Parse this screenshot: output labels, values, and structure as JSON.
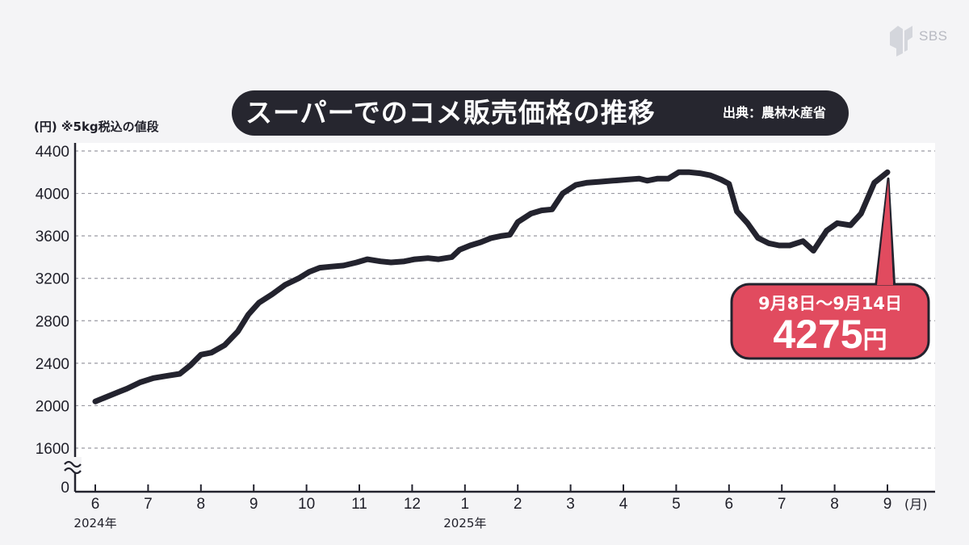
{
  "header": {
    "title": "スーパーでのコメ販売価格の推移",
    "source": "出典：農林水産省",
    "unit_label": "(円) ※5kg税込の値段",
    "brand": "SBS"
  },
  "callout": {
    "date_range": "9月8日〜9月14日",
    "value": "4275",
    "unit": "円",
    "color": "#e14b5f"
  },
  "chart_data": {
    "type": "line",
    "title": "スーパーでのコメ販売価格の推移",
    "xlabel": "(月)",
    "ylabel": "(円)",
    "ylim": [
      1600,
      4400
    ],
    "broken_axis": true,
    "grid": true,
    "line_color": "#23232e",
    "yticks": [
      {
        "label": "4400",
        "value": 4400
      },
      {
        "label": "4000",
        "value": 4000
      },
      {
        "label": "3600",
        "value": 3600
      },
      {
        "label": "3200",
        "value": 3200
      },
      {
        "label": "2800",
        "value": 2800
      },
      {
        "label": "2400",
        "value": 2400
      },
      {
        "label": "2000",
        "value": 2000
      },
      {
        "label": "1600",
        "value": 1600
      }
    ],
    "y_zero_label": "0",
    "xticks": [
      {
        "label": "6",
        "x": 0
      },
      {
        "label": "7",
        "x": 1
      },
      {
        "label": "8",
        "x": 2
      },
      {
        "label": "9",
        "x": 3
      },
      {
        "label": "10",
        "x": 4
      },
      {
        "label": "11",
        "x": 5
      },
      {
        "label": "12",
        "x": 6
      },
      {
        "label": "1",
        "x": 7
      },
      {
        "label": "2",
        "x": 8
      },
      {
        "label": "3",
        "x": 9
      },
      {
        "label": "4",
        "x": 10
      },
      {
        "label": "5",
        "x": 11
      },
      {
        "label": "6",
        "x": 12
      },
      {
        "label": "7",
        "x": 13
      },
      {
        "label": "8",
        "x": 14
      },
      {
        "label": "9",
        "x": 15
      }
    ],
    "year_labels": [
      {
        "label": "2024年",
        "x": 0
      },
      {
        "label": "2025年",
        "x": 7
      }
    ],
    "series": [
      {
        "values": [
          [
            0.0,
            2040
          ],
          [
            0.15,
            2070
          ],
          [
            0.3,
            2100
          ],
          [
            0.45,
            2130
          ],
          [
            0.6,
            2160
          ],
          [
            0.85,
            2220
          ],
          [
            1.1,
            2260
          ],
          [
            1.35,
            2280
          ],
          [
            1.6,
            2300
          ],
          [
            1.8,
            2380
          ],
          [
            2.0,
            2480
          ],
          [
            2.2,
            2500
          ],
          [
            2.45,
            2570
          ],
          [
            2.7,
            2700
          ],
          [
            2.9,
            2860
          ],
          [
            3.1,
            2970
          ],
          [
            3.35,
            3050
          ],
          [
            3.6,
            3140
          ],
          [
            3.85,
            3200
          ],
          [
            4.05,
            3260
          ],
          [
            4.25,
            3300
          ],
          [
            4.45,
            3310
          ],
          [
            4.7,
            3320
          ],
          [
            4.95,
            3350
          ],
          [
            5.15,
            3380
          ],
          [
            5.4,
            3360
          ],
          [
            5.6,
            3350
          ],
          [
            5.85,
            3360
          ],
          [
            6.05,
            3380
          ],
          [
            6.3,
            3390
          ],
          [
            6.5,
            3380
          ],
          [
            6.75,
            3400
          ],
          [
            6.9,
            3470
          ],
          [
            7.1,
            3510
          ],
          [
            7.3,
            3540
          ],
          [
            7.5,
            3580
          ],
          [
            7.7,
            3600
          ],
          [
            7.85,
            3610
          ],
          [
            8.0,
            3730
          ],
          [
            8.25,
            3810
          ],
          [
            8.45,
            3840
          ],
          [
            8.65,
            3850
          ],
          [
            8.85,
            4000
          ],
          [
            9.1,
            4080
          ],
          [
            9.3,
            4100
          ],
          [
            9.55,
            4110
          ],
          [
            9.8,
            4120
          ],
          [
            10.05,
            4130
          ],
          [
            10.3,
            4140
          ],
          [
            10.45,
            4120
          ],
          [
            10.65,
            4140
          ],
          [
            10.85,
            4140
          ],
          [
            11.05,
            4200
          ],
          [
            11.25,
            4200
          ],
          [
            11.45,
            4190
          ],
          [
            11.65,
            4170
          ],
          [
            11.85,
            4130
          ],
          [
            12.0,
            4090
          ],
          [
            12.15,
            3830
          ],
          [
            12.35,
            3720
          ],
          [
            12.55,
            3580
          ],
          [
            12.75,
            3530
          ],
          [
            12.95,
            3510
          ],
          [
            13.15,
            3510
          ],
          [
            13.4,
            3550
          ],
          [
            13.6,
            3460
          ],
          [
            13.85,
            3650
          ],
          [
            14.05,
            3720
          ],
          [
            14.3,
            3700
          ],
          [
            14.5,
            3810
          ],
          [
            14.75,
            4100
          ],
          [
            15.0,
            4200
          ]
        ]
      }
    ]
  }
}
